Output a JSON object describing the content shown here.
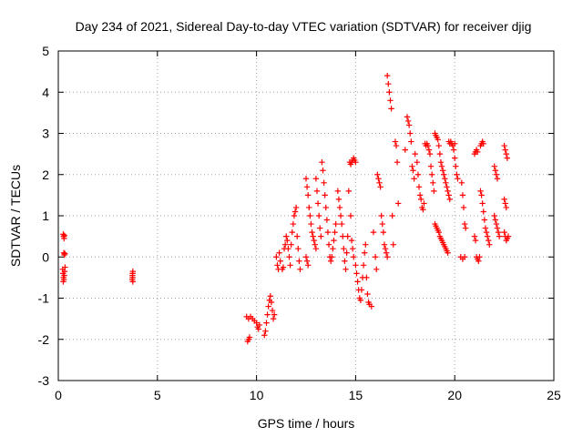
{
  "chart_data": {
    "type": "scatter",
    "title": "Day 234 of 2021, Sidereal Day-to-day VTEC variation (SDTVAR) for receiver djig",
    "xlabel": "GPS time / hours",
    "ylabel": "SDTVAR / TECUs",
    "xlim": [
      0,
      25
    ],
    "ylim": [
      -3,
      5
    ],
    "xticks": [
      0,
      5,
      10,
      15,
      20,
      25
    ],
    "yticks": [
      -3,
      -2,
      -1,
      0,
      1,
      2,
      3,
      4,
      5
    ],
    "grid": true,
    "marker": "plus",
    "marker_color": "#ff0000",
    "series": [
      {
        "name": "SDTVAR",
        "points": [
          [
            0.25,
            0.55
          ],
          [
            0.27,
            0.5
          ],
          [
            0.29,
            0.45
          ],
          [
            0.31,
            0.52
          ],
          [
            0.28,
            0.1
          ],
          [
            0.3,
            0.05
          ],
          [
            0.33,
            0.08
          ],
          [
            0.22,
            -0.3
          ],
          [
            0.24,
            -0.4
          ],
          [
            0.26,
            -0.5
          ],
          [
            0.28,
            -0.55
          ],
          [
            0.3,
            -0.45
          ],
          [
            0.32,
            -0.35
          ],
          [
            0.34,
            -0.25
          ],
          [
            0.25,
            -0.6
          ],
          [
            3.75,
            -0.4
          ],
          [
            3.75,
            -0.5
          ],
          [
            3.76,
            -0.6
          ],
          [
            3.74,
            -0.45
          ],
          [
            3.73,
            -0.55
          ],
          [
            3.76,
            -0.35
          ],
          [
            9.5,
            -1.45
          ],
          [
            9.6,
            -1.5
          ],
          [
            9.7,
            -1.45
          ],
          [
            9.8,
            -1.5
          ],
          [
            9.9,
            -1.55
          ],
          [
            9.55,
            -2.05
          ],
          [
            9.6,
            -2.0
          ],
          [
            9.65,
            -1.95
          ],
          [
            10.0,
            -1.6
          ],
          [
            10.05,
            -1.7
          ],
          [
            10.1,
            -1.75
          ],
          [
            10.15,
            -1.65
          ],
          [
            10.4,
            -1.9
          ],
          [
            10.45,
            -1.8
          ],
          [
            10.5,
            -1.6
          ],
          [
            10.55,
            -1.4
          ],
          [
            10.6,
            -1.2
          ],
          [
            10.65,
            -1.05
          ],
          [
            10.7,
            -0.95
          ],
          [
            10.75,
            -1.1
          ],
          [
            10.8,
            -1.3
          ],
          [
            10.85,
            -1.5
          ],
          [
            10.9,
            -1.4
          ],
          [
            11.0,
            0.0
          ],
          [
            11.05,
            -0.2
          ],
          [
            11.1,
            -0.3
          ],
          [
            11.15,
            0.1
          ],
          [
            11.2,
            -0.1
          ],
          [
            11.3,
            -0.3
          ],
          [
            11.35,
            -0.25
          ],
          [
            11.4,
            0.2
          ],
          [
            11.45,
            0.3
          ],
          [
            11.5,
            0.5
          ],
          [
            11.55,
            0.4
          ],
          [
            11.6,
            0.2
          ],
          [
            11.65,
            0.0
          ],
          [
            11.7,
            -0.2
          ],
          [
            11.75,
            0.3
          ],
          [
            11.8,
            0.6
          ],
          [
            11.85,
            0.8
          ],
          [
            11.9,
            1.0
          ],
          [
            11.95,
            1.1
          ],
          [
            12.0,
            1.2
          ],
          [
            12.05,
            0.5
          ],
          [
            12.1,
            0.2
          ],
          [
            12.15,
            -0.1
          ],
          [
            12.2,
            -0.3
          ],
          [
            12.5,
            1.9
          ],
          [
            12.55,
            1.7
          ],
          [
            12.6,
            1.5
          ],
          [
            12.65,
            1.2
          ],
          [
            12.7,
            1.0
          ],
          [
            12.75,
            0.8
          ],
          [
            12.8,
            0.6
          ],
          [
            12.85,
            0.5
          ],
          [
            12.9,
            0.4
          ],
          [
            12.95,
            0.3
          ],
          [
            13.0,
            0.2
          ],
          [
            12.5,
            0.0
          ],
          [
            12.55,
            -0.1
          ],
          [
            12.6,
            -0.2
          ],
          [
            13.0,
            1.9
          ],
          [
            13.05,
            1.6
          ],
          [
            13.1,
            1.3
          ],
          [
            13.15,
            1.0
          ],
          [
            13.2,
            0.7
          ],
          [
            13.25,
            0.5
          ],
          [
            13.3,
            2.3
          ],
          [
            13.35,
            2.1
          ],
          [
            13.4,
            1.8
          ],
          [
            13.45,
            1.5
          ],
          [
            13.5,
            1.2
          ],
          [
            13.55,
            0.9
          ],
          [
            13.6,
            0.6
          ],
          [
            13.65,
            0.3
          ],
          [
            13.7,
            0.0
          ],
          [
            13.75,
            -0.1
          ],
          [
            13.8,
            0.0
          ],
          [
            13.85,
            0.2
          ],
          [
            13.9,
            0.4
          ],
          [
            13.95,
            0.6
          ],
          [
            14.0,
            0.8
          ],
          [
            14.1,
            1.6
          ],
          [
            14.15,
            1.4
          ],
          [
            14.2,
            1.2
          ],
          [
            14.25,
            1.0
          ],
          [
            14.3,
            0.8
          ],
          [
            14.35,
            0.5
          ],
          [
            14.4,
            0.2
          ],
          [
            14.45,
            -0.1
          ],
          [
            14.5,
            -0.3
          ],
          [
            14.55,
            0.1
          ],
          [
            14.6,
            0.5
          ],
          [
            14.65,
            1.6
          ],
          [
            14.7,
            2.3
          ],
          [
            14.75,
            2.25
          ],
          [
            14.8,
            2.3
          ],
          [
            14.85,
            2.35
          ],
          [
            14.9,
            2.4
          ],
          [
            14.95,
            2.35
          ],
          [
            15.0,
            2.3
          ],
          [
            14.75,
            1.0
          ],
          [
            14.8,
            0.4
          ],
          [
            14.85,
            0.2
          ],
          [
            14.9,
            0.0
          ],
          [
            15.0,
            -0.2
          ],
          [
            15.05,
            -0.4
          ],
          [
            15.1,
            -0.6
          ],
          [
            15.15,
            -0.8
          ],
          [
            15.2,
            -1.0
          ],
          [
            15.25,
            -1.05
          ],
          [
            15.3,
            -0.8
          ],
          [
            15.35,
            -0.5
          ],
          [
            15.4,
            -0.2
          ],
          [
            15.45,
            0.1
          ],
          [
            15.5,
            0.3
          ],
          [
            15.55,
            -0.5
          ],
          [
            15.6,
            -0.9
          ],
          [
            15.65,
            -1.1
          ],
          [
            15.7,
            -1.15
          ],
          [
            15.8,
            -1.2
          ],
          [
            15.9,
            0.6
          ],
          [
            16.0,
            0.0
          ],
          [
            16.05,
            -0.3
          ],
          [
            16.1,
            2.0
          ],
          [
            16.15,
            1.9
          ],
          [
            16.2,
            1.8
          ],
          [
            16.25,
            1.7
          ],
          [
            16.3,
            1.0
          ],
          [
            16.35,
            0.8
          ],
          [
            16.4,
            0.6
          ],
          [
            16.45,
            0.3
          ],
          [
            16.5,
            0.2
          ],
          [
            16.55,
            0.1
          ],
          [
            16.6,
            0.0
          ],
          [
            16.6,
            4.4
          ],
          [
            16.65,
            4.2
          ],
          [
            16.7,
            4.0
          ],
          [
            16.75,
            3.8
          ],
          [
            16.8,
            3.6
          ],
          [
            16.85,
            1.0
          ],
          [
            16.9,
            0.3
          ],
          [
            17.0,
            2.8
          ],
          [
            17.05,
            2.7
          ],
          [
            17.1,
            2.3
          ],
          [
            17.15,
            1.3
          ],
          [
            17.6,
            3.4
          ],
          [
            17.65,
            3.3
          ],
          [
            17.7,
            3.2
          ],
          [
            17.75,
            3.0
          ],
          [
            17.8,
            2.8
          ],
          [
            17.85,
            2.2
          ],
          [
            17.9,
            2.1
          ],
          [
            17.95,
            1.9
          ],
          [
            17.5,
            2.6
          ],
          [
            18.0,
            2.5
          ],
          [
            18.1,
            2.3
          ],
          [
            18.15,
            2.0
          ],
          [
            18.2,
            1.7
          ],
          [
            18.25,
            1.5
          ],
          [
            18.3,
            1.4
          ],
          [
            18.35,
            1.2
          ],
          [
            18.4,
            1.15
          ],
          [
            18.45,
            1.3
          ],
          [
            18.5,
            2.75
          ],
          [
            18.55,
            2.7
          ],
          [
            18.6,
            2.75
          ],
          [
            18.65,
            2.7
          ],
          [
            18.7,
            2.6
          ],
          [
            18.75,
            2.5
          ],
          [
            18.8,
            2.2
          ],
          [
            18.85,
            2.0
          ],
          [
            18.9,
            1.8
          ],
          [
            18.95,
            1.6
          ],
          [
            19.0,
            3.0
          ],
          [
            19.05,
            2.95
          ],
          [
            19.1,
            2.9
          ],
          [
            19.15,
            2.85
          ],
          [
            19.2,
            2.7
          ],
          [
            19.25,
            2.5
          ],
          [
            19.3,
            2.3
          ],
          [
            19.35,
            2.2
          ],
          [
            19.4,
            2.1
          ],
          [
            19.45,
            2.0
          ],
          [
            19.5,
            1.9
          ],
          [
            19.55,
            1.8
          ],
          [
            19.6,
            1.7
          ],
          [
            19.65,
            1.6
          ],
          [
            19.7,
            1.5
          ],
          [
            19.75,
            1.4
          ],
          [
            19.0,
            0.8
          ],
          [
            19.05,
            0.75
          ],
          [
            19.1,
            0.7
          ],
          [
            19.15,
            0.65
          ],
          [
            19.2,
            0.6
          ],
          [
            19.25,
            0.5
          ],
          [
            19.3,
            0.45
          ],
          [
            19.35,
            0.4
          ],
          [
            19.4,
            0.35
          ],
          [
            19.45,
            0.3
          ],
          [
            19.5,
            0.25
          ],
          [
            19.55,
            0.2
          ],
          [
            19.6,
            0.15
          ],
          [
            19.65,
            0.1
          ],
          [
            19.7,
            2.8
          ],
          [
            19.75,
            2.75
          ],
          [
            19.8,
            2.8
          ],
          [
            19.85,
            2.75
          ],
          [
            19.9,
            2.7
          ],
          [
            19.95,
            2.6
          ],
          [
            20.0,
            2.4
          ],
          [
            20.05,
            2.2
          ],
          [
            20.1,
            2.0
          ],
          [
            20.15,
            1.9
          ],
          [
            20.0,
            2.75
          ],
          [
            20.3,
            0.0
          ],
          [
            20.4,
            -0.05
          ],
          [
            20.5,
            0.0
          ],
          [
            20.35,
            1.8
          ],
          [
            20.4,
            1.5
          ],
          [
            20.45,
            1.2
          ],
          [
            20.5,
            0.8
          ],
          [
            20.55,
            0.7
          ],
          [
            21.0,
            2.5
          ],
          [
            21.05,
            2.55
          ],
          [
            21.1,
            2.6
          ],
          [
            21.15,
            2.55
          ],
          [
            21.0,
            0.5
          ],
          [
            21.05,
            0.4
          ],
          [
            21.1,
            0.0
          ],
          [
            21.15,
            -0.05
          ],
          [
            21.2,
            -0.1
          ],
          [
            21.25,
            0.0
          ],
          [
            21.3,
            2.7
          ],
          [
            21.35,
            2.75
          ],
          [
            21.4,
            2.8
          ],
          [
            21.45,
            2.75
          ],
          [
            21.3,
            1.6
          ],
          [
            21.35,
            1.5
          ],
          [
            21.4,
            1.3
          ],
          [
            21.45,
            1.1
          ],
          [
            21.5,
            0.9
          ],
          [
            21.55,
            0.7
          ],
          [
            21.6,
            0.6
          ],
          [
            21.65,
            0.5
          ],
          [
            21.7,
            0.4
          ],
          [
            21.75,
            0.3
          ],
          [
            22.0,
            2.2
          ],
          [
            22.05,
            2.1
          ],
          [
            22.1,
            2.0
          ],
          [
            22.15,
            1.9
          ],
          [
            22.0,
            1.0
          ],
          [
            22.05,
            0.9
          ],
          [
            22.1,
            0.8
          ],
          [
            22.15,
            0.7
          ],
          [
            22.2,
            0.6
          ],
          [
            22.25,
            0.5
          ],
          [
            22.5,
            2.7
          ],
          [
            22.55,
            2.6
          ],
          [
            22.6,
            2.5
          ],
          [
            22.65,
            2.4
          ],
          [
            22.5,
            1.4
          ],
          [
            22.55,
            1.3
          ],
          [
            22.6,
            1.2
          ],
          [
            22.5,
            0.6
          ],
          [
            22.55,
            0.5
          ],
          [
            22.6,
            0.4
          ],
          [
            22.65,
            0.45
          ],
          [
            22.7,
            0.5
          ]
        ]
      }
    ]
  }
}
